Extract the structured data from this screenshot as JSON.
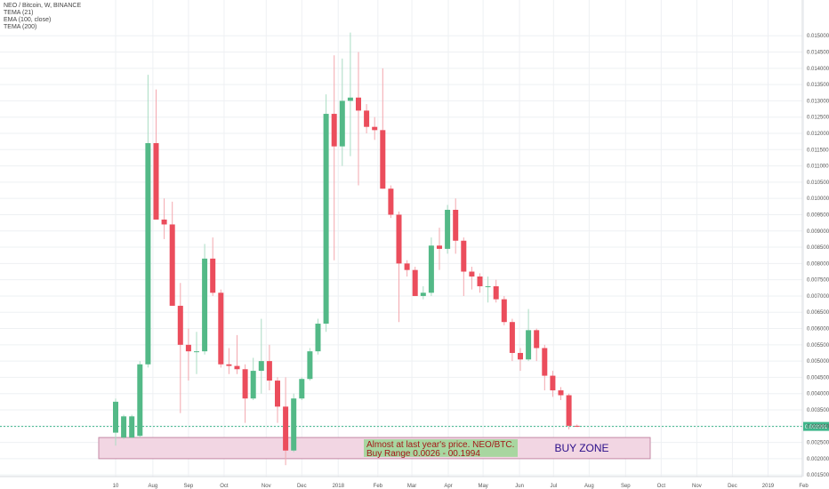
{
  "legend": {
    "symbol": "NEO / Bitcoin, W, BINANCE",
    "ind1": "TEMA (21)",
    "ind2": "EMA (100, close)",
    "ind3": "TEMA (200)"
  },
  "colors": {
    "up": "#53b987",
    "down": "#eb4d5c",
    "zone_fill": "#f2d6e3",
    "zone_border": "#c48aa6",
    "note_fill": "#a8d6a0",
    "price_line": "#3fb68b",
    "grid": "#eef0f3"
  },
  "chart_data": {
    "type": "candlestick",
    "title": "NEO / Bitcoin, W, BINANCE",
    "ylim": [
      0.00145,
      0.0161
    ],
    "y_ticks": [
      "0.015000",
      "0.014500",
      "0.014000",
      "0.013500",
      "0.013000",
      "0.012500",
      "0.012000",
      "0.011500",
      "0.011000",
      "0.010500",
      "0.010000",
      "0.009500",
      "0.009000",
      "0.008500",
      "0.008000",
      "0.007500",
      "0.007000",
      "0.006500",
      "0.006000",
      "0.005500",
      "0.005000",
      "0.004500",
      "0.004000",
      "0.003500",
      "0.003000",
      "0.002500",
      "0.002000",
      "0.001500"
    ],
    "x_ticks": [
      {
        "label": "10",
        "w": 0
      },
      {
        "label": "Aug",
        "w": 4.6
      },
      {
        "label": "Sep",
        "w": 9.0
      },
      {
        "label": "Oct",
        "w": 13.4
      },
      {
        "label": "Nov",
        "w": 18.6
      },
      {
        "label": "Dec",
        "w": 23.0
      },
      {
        "label": "2018",
        "w": 27.5
      },
      {
        "label": "Feb",
        "w": 32.4
      },
      {
        "label": "Mar",
        "w": 36.6
      },
      {
        "label": "Apr",
        "w": 41.1
      },
      {
        "label": "May",
        "w": 45.4
      },
      {
        "label": "Jun",
        "w": 49.9
      },
      {
        "label": "Jul",
        "w": 54.1
      },
      {
        "label": "Aug",
        "w": 58.5
      },
      {
        "label": "Sep",
        "w": 63.0
      },
      {
        "label": "Oct",
        "w": 67.4
      },
      {
        "label": "Nov",
        "w": 71.8
      },
      {
        "label": "Dec",
        "w": 76.2
      },
      {
        "label": "2019",
        "w": 80.6
      },
      {
        "label": "Feb",
        "w": 85.0
      }
    ],
    "candles": [
      {
        "o": 0.0028,
        "h": 0.00385,
        "l": 0.0024,
        "c": 0.00375
      },
      {
        "o": 0.00265,
        "h": 0.00335,
        "l": 0.0026,
        "c": 0.0033
      },
      {
        "o": 0.00265,
        "h": 0.00335,
        "l": 0.00262,
        "c": 0.0033
      },
      {
        "o": 0.0027,
        "h": 0.005,
        "l": 0.00265,
        "c": 0.0049
      },
      {
        "o": 0.0049,
        "h": 0.0138,
        "l": 0.0048,
        "c": 0.0117
      },
      {
        "o": 0.0117,
        "h": 0.01335,
        "l": 0.00935,
        "c": 0.00935
      },
      {
        "o": 0.00935,
        "h": 0.01,
        "l": 0.00875,
        "c": 0.0092
      },
      {
        "o": 0.0092,
        "h": 0.0099,
        "l": 0.0067,
        "c": 0.0067
      },
      {
        "o": 0.0067,
        "h": 0.0074,
        "l": 0.0034,
        "c": 0.0055
      },
      {
        "o": 0.0055,
        "h": 0.006,
        "l": 0.0044,
        "c": 0.0053
      },
      {
        "o": 0.0053,
        "h": 0.0059,
        "l": 0.0046,
        "c": 0.0053
      },
      {
        "o": 0.0053,
        "h": 0.0086,
        "l": 0.0052,
        "c": 0.00815
      },
      {
        "o": 0.00815,
        "h": 0.0088,
        "l": 0.007,
        "c": 0.0071
      },
      {
        "o": 0.0071,
        "h": 0.0072,
        "l": 0.0048,
        "c": 0.0049
      },
      {
        "o": 0.0049,
        "h": 0.0054,
        "l": 0.0046,
        "c": 0.00485
      },
      {
        "o": 0.00485,
        "h": 0.0058,
        "l": 0.0046,
        "c": 0.00475
      },
      {
        "o": 0.00475,
        "h": 0.0049,
        "l": 0.0031,
        "c": 0.00385
      },
      {
        "o": 0.00385,
        "h": 0.0051,
        "l": 0.0038,
        "c": 0.0047
      },
      {
        "o": 0.0047,
        "h": 0.0063,
        "l": 0.004,
        "c": 0.005
      },
      {
        "o": 0.005,
        "h": 0.0055,
        "l": 0.0041,
        "c": 0.0044
      },
      {
        "o": 0.0044,
        "h": 0.0045,
        "l": 0.0031,
        "c": 0.0036
      },
      {
        "o": 0.0036,
        "h": 0.0045,
        "l": 0.0018,
        "c": 0.00225
      },
      {
        "o": 0.00225,
        "h": 0.004,
        "l": 0.0022,
        "c": 0.00385
      },
      {
        "o": 0.00385,
        "h": 0.0045,
        "l": 0.0038,
        "c": 0.00445
      },
      {
        "o": 0.00445,
        "h": 0.0054,
        "l": 0.0044,
        "c": 0.0053
      },
      {
        "o": 0.0053,
        "h": 0.0063,
        "l": 0.0052,
        "c": 0.00615
      },
      {
        "o": 0.00615,
        "h": 0.0132,
        "l": 0.0059,
        "c": 0.0126
      },
      {
        "o": 0.0126,
        "h": 0.0144,
        "l": 0.0081,
        "c": 0.0116
      },
      {
        "o": 0.0116,
        "h": 0.0143,
        "l": 0.011,
        "c": 0.013
      },
      {
        "o": 0.013,
        "h": 0.0151,
        "l": 0.0113,
        "c": 0.0131
      },
      {
        "o": 0.0131,
        "h": 0.0145,
        "l": 0.0104,
        "c": 0.0127
      },
      {
        "o": 0.0127,
        "h": 0.0129,
        "l": 0.012,
        "c": 0.0122
      },
      {
        "o": 0.0122,
        "h": 0.0125,
        "l": 0.0118,
        "c": 0.0121
      },
      {
        "o": 0.0121,
        "h": 0.014,
        "l": 0.0103,
        "c": 0.0103
      },
      {
        "o": 0.0103,
        "h": 0.0104,
        "l": 0.0094,
        "c": 0.0095
      },
      {
        "o": 0.0095,
        "h": 0.0096,
        "l": 0.0062,
        "c": 0.008
      },
      {
        "o": 0.008,
        "h": 0.0081,
        "l": 0.0076,
        "c": 0.0078
      },
      {
        "o": 0.0078,
        "h": 0.0079,
        "l": 0.007,
        "c": 0.007
      },
      {
        "o": 0.007,
        "h": 0.0073,
        "l": 0.0069,
        "c": 0.0071
      },
      {
        "o": 0.0071,
        "h": 0.0088,
        "l": 0.007,
        "c": 0.00855
      },
      {
        "o": 0.00855,
        "h": 0.0091,
        "l": 0.0078,
        "c": 0.00845
      },
      {
        "o": 0.00845,
        "h": 0.0098,
        "l": 0.0083,
        "c": 0.00965
      },
      {
        "o": 0.00965,
        "h": 0.01,
        "l": 0.0083,
        "c": 0.0087
      },
      {
        "o": 0.0087,
        "h": 0.0088,
        "l": 0.007,
        "c": 0.00775
      },
      {
        "o": 0.00775,
        "h": 0.0079,
        "l": 0.0072,
        "c": 0.0076
      },
      {
        "o": 0.0076,
        "h": 0.0077,
        "l": 0.0071,
        "c": 0.0073
      },
      {
        "o": 0.0073,
        "h": 0.0076,
        "l": 0.0068,
        "c": 0.0073
      },
      {
        "o": 0.0073,
        "h": 0.0075,
        "l": 0.0068,
        "c": 0.0069
      },
      {
        "o": 0.0069,
        "h": 0.007,
        "l": 0.0061,
        "c": 0.0062
      },
      {
        "o": 0.0062,
        "h": 0.0063,
        "l": 0.005,
        "c": 0.00525
      },
      {
        "o": 0.00525,
        "h": 0.0054,
        "l": 0.0047,
        "c": 0.00505
      },
      {
        "o": 0.00505,
        "h": 0.0066,
        "l": 0.005,
        "c": 0.00595
      },
      {
        "o": 0.00595,
        "h": 0.006,
        "l": 0.005,
        "c": 0.0054
      },
      {
        "o": 0.0054,
        "h": 0.0055,
        "l": 0.0041,
        "c": 0.00455
      },
      {
        "o": 0.00455,
        "h": 0.0047,
        "l": 0.0039,
        "c": 0.0041
      },
      {
        "o": 0.0041,
        "h": 0.0042,
        "l": 0.0038,
        "c": 0.00395
      },
      {
        "o": 0.00395,
        "h": 0.004,
        "l": 0.0029,
        "c": 0.00301
      },
      {
        "o": 0.00301,
        "h": 0.00305,
        "l": 0.00298,
        "c": 0.003
      }
    ],
    "current_price": 0.002991,
    "current_price_label": "0.002991",
    "buy_zone": {
      "low": 0.002,
      "high": 0.00265,
      "label": "BUY ZONE",
      "note_line1": "Almost at last year's price. NEO/BTC.",
      "note_line2": "Buy Range  0.0026  -  00.1994"
    }
  }
}
